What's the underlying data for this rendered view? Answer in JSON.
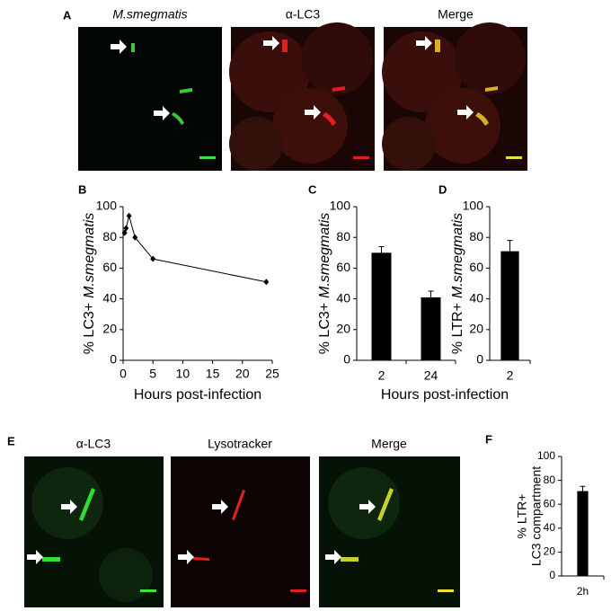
{
  "figure": {
    "panel_a": {
      "label": "A",
      "titles": [
        "M.smegmatis",
        "α-LC3",
        "Merge"
      ]
    },
    "panel_e": {
      "label": "E",
      "titles": [
        "α-LC3",
        "Lysotracker",
        "Merge"
      ]
    }
  },
  "chart_data": [
    {
      "type": "line",
      "panel": "B",
      "x": [
        0.25,
        0.5,
        1,
        2,
        5,
        24
      ],
      "values": [
        83,
        86,
        94,
        80,
        66,
        51
      ],
      "color": "#000000",
      "xlim": [
        0,
        25
      ],
      "xticks": [
        0,
        5,
        10,
        15,
        20,
        25
      ],
      "ylim": [
        0,
        100
      ],
      "yticks": [
        0,
        20,
        40,
        60,
        80,
        100
      ],
      "xlabel": "Hours post-infection",
      "ylabel": {
        "text": "% LC3+",
        "italic": "M.smegmatis"
      }
    },
    {
      "type": "bar",
      "panel": "C",
      "categories": [
        "2",
        "24"
      ],
      "values": [
        70,
        41
      ],
      "errors": [
        4,
        4
      ],
      "color": "#000000",
      "ylim": [
        0,
        100
      ],
      "yticks": [
        0,
        20,
        40,
        60,
        80,
        100
      ],
      "xlabel": "Hours post-infection",
      "ylabel": {
        "text": "% LC3+",
        "italic": "M.smegmatis"
      }
    },
    {
      "type": "bar",
      "panel": "D",
      "categories": [
        "2"
      ],
      "values": [
        71
      ],
      "errors": [
        7
      ],
      "color": "#000000",
      "ylim": [
        0,
        100
      ],
      "yticks": [
        0,
        20,
        40,
        60,
        80,
        100
      ],
      "ylabel": {
        "text": "% LTR+",
        "italic": "M.smegmatis"
      }
    },
    {
      "type": "bar",
      "panel": "F",
      "categories": [
        "2h"
      ],
      "values": [
        71
      ],
      "errors": [
        4
      ],
      "color": "#000000",
      "ylim": [
        0,
        100
      ],
      "yticks": [
        0,
        20,
        40,
        60,
        80,
        100
      ],
      "ylabel": [
        "% LTR+",
        "LC3 compartment"
      ]
    }
  ]
}
